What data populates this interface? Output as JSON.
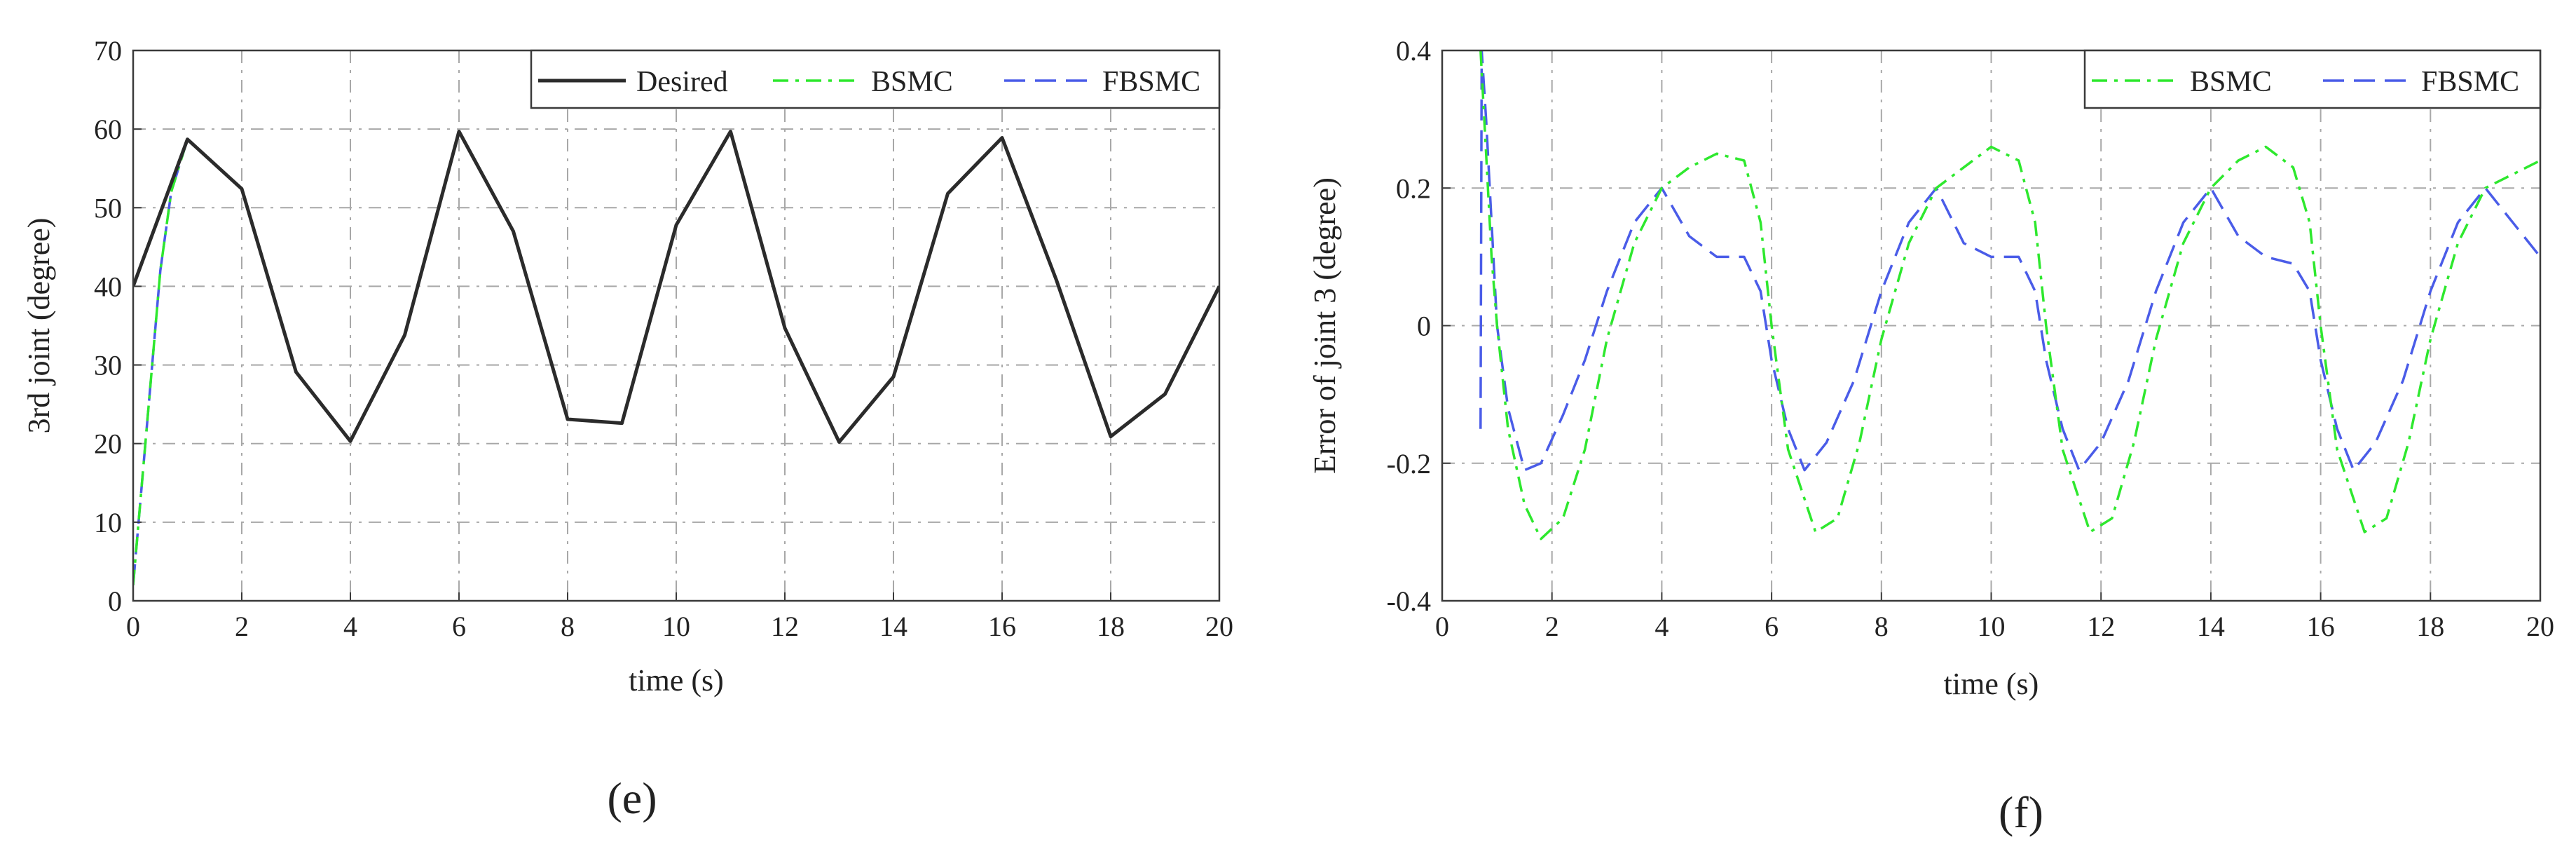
{
  "chart_data": [
    {
      "panel_label": "(e)",
      "type": "line",
      "xlabel": "time (s)",
      "ylabel": "3rd joint (degree)",
      "xlim": [
        0,
        20
      ],
      "ylim": [
        0,
        70
      ],
      "x_ticks": [
        0,
        2,
        4,
        6,
        8,
        10,
        12,
        14,
        16,
        18,
        20
      ],
      "y_ticks": [
        0,
        10,
        20,
        30,
        40,
        50,
        60,
        70
      ],
      "x_tick_labels": [
        "0",
        "2",
        "4",
        "6",
        "8",
        "10",
        "12",
        "14",
        "16",
        "18",
        "20"
      ],
      "y_tick_labels": [
        "0",
        "10",
        "20",
        "30",
        "40",
        "50",
        "60",
        "70"
      ],
      "grid": true,
      "legend_position": "top-right",
      "series": [
        {
          "name": "Desired",
          "color": "#2b2b2b",
          "style": "solid",
          "x": [
            0,
            1,
            2,
            3,
            4,
            5,
            6,
            7,
            8,
            9,
            10,
            11,
            12,
            13,
            14,
            15,
            16,
            17,
            18,
            19,
            20
          ],
          "y": [
            40,
            58.7,
            52.4,
            29.1,
            20.3,
            33.8,
            59.7,
            47,
            23.1,
            22.6,
            47.8,
            59.7,
            34.7,
            20.2,
            28.5,
            51.8,
            58.9,
            40.8,
            20.9,
            26.3,
            40
          ]
        },
        {
          "name": "BSMC",
          "color": "#2ee82e",
          "style": "dashdot",
          "x": [
            0,
            0.2,
            0.5,
            0.7,
            1,
            2,
            3,
            4,
            5,
            6,
            7,
            8,
            9,
            10,
            11,
            12,
            13,
            14,
            15,
            16,
            17,
            18,
            19,
            20
          ],
          "y": [
            2,
            18,
            42,
            52,
            58.7,
            52.4,
            29.1,
            20.3,
            33.8,
            59.7,
            47,
            23.1,
            22.6,
            47.8,
            59.7,
            34.7,
            20.2,
            28.5,
            51.8,
            58.9,
            40.8,
            20.9,
            26.3,
            40
          ]
        },
        {
          "name": "FBSMC",
          "color": "#4a5ce8",
          "style": "dashed",
          "x": [
            0,
            0.2,
            0.5,
            0.7,
            1,
            2,
            3,
            4,
            5,
            6,
            7,
            8,
            9,
            10,
            11,
            12,
            13,
            14,
            15,
            16,
            17,
            18,
            19,
            20
          ],
          "y": [
            2,
            18,
            42,
            52,
            58.7,
            52.4,
            29.1,
            20.3,
            33.8,
            59.7,
            47,
            23.1,
            22.6,
            47.8,
            59.7,
            34.7,
            20.2,
            28.5,
            51.8,
            58.9,
            40.8,
            20.9,
            26.3,
            40
          ]
        }
      ]
    },
    {
      "panel_label": "(f)",
      "type": "line",
      "xlabel": "time (s)",
      "ylabel": "Error of joint 3 (degree)",
      "xlim": [
        0,
        20
      ],
      "ylim": [
        -0.4,
        0.4
      ],
      "x_ticks": [
        0,
        2,
        4,
        6,
        8,
        10,
        12,
        14,
        16,
        18,
        20
      ],
      "y_ticks": [
        -0.4,
        -0.2,
        0,
        0.2,
        0.4
      ],
      "x_tick_labels": [
        "0",
        "2",
        "4",
        "6",
        "8",
        "10",
        "12",
        "14",
        "16",
        "18",
        "20"
      ],
      "y_tick_labels": [
        "-0.4",
        "-0.2",
        "0",
        "0.2",
        "0.4"
      ],
      "grid": true,
      "legend_position": "top-right",
      "series": [
        {
          "name": "BSMC",
          "color": "#2ee82e",
          "style": "dashdot",
          "x": [
            0.7,
            0.8,
            0.9,
            1.0,
            1.2,
            1.5,
            1.8,
            2.2,
            2.6,
            3.0,
            3.5,
            4.0,
            4.5,
            5.0,
            5.5,
            5.8,
            6.0,
            6.3,
            6.8,
            7.2,
            7.6,
            8.0,
            8.5,
            9.0,
            9.5,
            10.0,
            10.5,
            10.8,
            11.0,
            11.3,
            11.8,
            12.2,
            12.6,
            13.0,
            13.5,
            14.0,
            14.5,
            15.0,
            15.5,
            15.8,
            16.0,
            16.3,
            16.8,
            17.2,
            17.6,
            18.0,
            18.5,
            19.0,
            19.5,
            20.0
          ],
          "y": [
            0.4,
            0.25,
            0.1,
            0.0,
            -0.15,
            -0.26,
            -0.31,
            -0.28,
            -0.18,
            -0.02,
            0.12,
            0.2,
            0.23,
            0.25,
            0.24,
            0.15,
            0.0,
            -0.18,
            -0.3,
            -0.28,
            -0.17,
            -0.02,
            0.12,
            0.2,
            0.23,
            0.26,
            0.24,
            0.15,
            0.0,
            -0.18,
            -0.3,
            -0.28,
            -0.17,
            -0.02,
            0.12,
            0.2,
            0.24,
            0.26,
            0.23,
            0.15,
            0.0,
            -0.18,
            -0.3,
            -0.28,
            -0.17,
            -0.02,
            0.12,
            0.2,
            0.22,
            0.24
          ]
        },
        {
          "name": "FBSMC",
          "color": "#4a5ce8",
          "style": "dashed",
          "x": [
            0.7,
            0.72,
            0.8,
            0.9,
            1.0,
            1.2,
            1.5,
            1.8,
            2.2,
            2.6,
            3.0,
            3.5,
            4.0,
            4.5,
            5.0,
            5.5,
            5.8,
            6.0,
            6.3,
            6.6,
            7.0,
            7.5,
            8.0,
            8.5,
            9.0,
            9.5,
            10.0,
            10.5,
            10.8,
            11.0,
            11.3,
            11.6,
            12.0,
            12.5,
            13.0,
            13.5,
            14.0,
            14.5,
            15.0,
            15.5,
            15.8,
            16.0,
            16.3,
            16.6,
            17.0,
            17.5,
            18.0,
            18.5,
            19.0,
            19.5,
            20.0
          ],
          "y": [
            -0.15,
            0.4,
            0.3,
            0.15,
            0.0,
            -0.12,
            -0.21,
            -0.2,
            -0.13,
            -0.05,
            0.05,
            0.15,
            0.2,
            0.13,
            0.1,
            0.1,
            0.05,
            -0.05,
            -0.15,
            -0.21,
            -0.17,
            -0.08,
            0.05,
            0.15,
            0.2,
            0.12,
            0.1,
            0.1,
            0.05,
            -0.05,
            -0.15,
            -0.21,
            -0.17,
            -0.08,
            0.05,
            0.15,
            0.2,
            0.13,
            0.1,
            0.09,
            0.05,
            -0.05,
            -0.15,
            -0.21,
            -0.17,
            -0.08,
            0.05,
            0.15,
            0.2,
            0.15,
            0.1
          ]
        }
      ]
    }
  ]
}
